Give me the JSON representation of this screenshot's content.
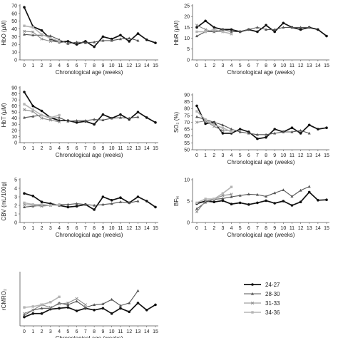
{
  "series_defs": [
    {
      "name": "24-27",
      "color": "#111111",
      "width": 1.7,
      "marker": "circle"
    },
    {
      "name": "28-30",
      "color": "#555555",
      "width": 1.1,
      "marker": "triangle"
    },
    {
      "name": "31-33",
      "color": "#8a8a8a",
      "width": 1.1,
      "marker": "cross"
    },
    {
      "name": "34-36",
      "color": "#b5b5b5",
      "width": 1.6,
      "marker": "square"
    }
  ],
  "chart_data": [
    {
      "type": "line",
      "xlabel": "Chronological age (weeks)",
      "ylabel": "HbO (µM)",
      "ylim": [
        0,
        70
      ],
      "yticks": [
        0,
        10,
        20,
        30,
        40,
        50,
        60,
        70
      ],
      "xticks": [
        0,
        1,
        2,
        3,
        4,
        5,
        6,
        7,
        8,
        9,
        10,
        11,
        12,
        13,
        14,
        15
      ],
      "grid": false,
      "series": [
        {
          "name": "24-27",
          "x": [
            0,
            1,
            2,
            3,
            4,
            5,
            6,
            7,
            8,
            9,
            10,
            11,
            12,
            13,
            14,
            15
          ],
          "y": [
            68,
            43,
            38,
            27,
            23,
            24,
            20,
            24,
            17,
            30,
            27,
            32,
            24,
            34,
            26,
            22
          ]
        },
        {
          "name": "28-30",
          "x": [
            0,
            1,
            2,
            3,
            4,
            5,
            6,
            7,
            8,
            9,
            10,
            11,
            12,
            13
          ],
          "y": [
            33,
            32,
            32,
            31,
            26,
            21,
            23,
            22,
            23,
            25,
            25,
            27,
            28,
            25
          ]
        },
        {
          "name": "31-33",
          "x": [
            0,
            1,
            2,
            3,
            4
          ],
          "y": [
            37,
            36,
            27,
            24,
            23
          ]
        },
        {
          "name": "34-36",
          "x": [
            0,
            1,
            2,
            3,
            4
          ],
          "y": [
            44,
            42,
            33,
            28,
            24
          ]
        }
      ]
    },
    {
      "type": "line",
      "xlabel": "Chronological age (weeks)",
      "ylabel": "HbR (µM)",
      "ylim": [
        0,
        25
      ],
      "yticks": [
        0,
        5,
        10,
        15,
        20,
        25
      ],
      "xticks": [
        0,
        1,
        2,
        3,
        4,
        5,
        6,
        7,
        8,
        9,
        10,
        11,
        12,
        13,
        14,
        15
      ],
      "grid": false,
      "series": [
        {
          "name": "24-27",
          "x": [
            0,
            1,
            2,
            3,
            4,
            5,
            6,
            7,
            8,
            9,
            10,
            11,
            12,
            13,
            14,
            15
          ],
          "y": [
            15,
            18,
            15,
            14,
            14,
            13,
            14,
            13,
            16,
            13,
            17,
            15,
            14,
            15,
            14,
            11
          ]
        },
        {
          "name": "28-30",
          "x": [
            0,
            1,
            2,
            3,
            4,
            5,
            6,
            7,
            8,
            9,
            10,
            11,
            12,
            13
          ],
          "y": [
            11,
            13,
            13,
            14,
            13,
            13,
            14,
            15,
            14,
            14,
            15,
            15,
            15,
            15
          ]
        },
        {
          "name": "31-33",
          "x": [
            0,
            1,
            2,
            3,
            4
          ],
          "y": [
            16,
            14,
            13,
            13,
            12
          ]
        },
        {
          "name": "34-36",
          "x": [
            0,
            1,
            2,
            3,
            4
          ],
          "y": [
            13,
            13,
            14,
            13,
            12
          ]
        }
      ]
    },
    {
      "type": "line",
      "xlabel": "Chronological age (weeks)",
      "ylabel": "HbT (µM)",
      "ylim": [
        0,
        90
      ],
      "yticks": [
        0,
        10,
        20,
        30,
        40,
        50,
        60,
        70,
        80,
        90
      ],
      "xticks": [
        0,
        1,
        2,
        3,
        4,
        5,
        6,
        7,
        8,
        9,
        10,
        11,
        12,
        13,
        14,
        15
      ],
      "grid": false,
      "series": [
        {
          "name": "24-27",
          "x": [
            0,
            1,
            2,
            3,
            4,
            5,
            6,
            7,
            8,
            9,
            10,
            11,
            12,
            13,
            14,
            15
          ],
          "y": [
            83,
            60,
            52,
            41,
            36,
            36,
            33,
            35,
            30,
            46,
            40,
            46,
            38,
            50,
            41,
            33
          ]
        },
        {
          "name": "28-30",
          "x": [
            0,
            1,
            2,
            3,
            4,
            5,
            6,
            7,
            8,
            9,
            10,
            11,
            12,
            13
          ],
          "y": [
            41,
            43,
            45,
            40,
            41,
            35,
            36,
            36,
            38,
            37,
            40,
            41,
            40,
            42
          ]
        },
        {
          "name": "31-33",
          "x": [
            0,
            1,
            2,
            3,
            4
          ],
          "y": [
            54,
            51,
            40,
            37,
            34
          ]
        },
        {
          "name": "34-36",
          "x": [
            0,
            1,
            2,
            3,
            4
          ],
          "y": [
            63,
            54,
            45,
            41,
            45
          ]
        }
      ]
    },
    {
      "type": "line",
      "xlabel": "Chronological age (weeks)",
      "ylabel": "SO₂ (%)",
      "ylim": [
        50,
        90
      ],
      "yticks": [
        50,
        55,
        60,
        65,
        70,
        75,
        80,
        85,
        90
      ],
      "xticks": [
        0,
        1,
        2,
        3,
        4,
        5,
        6,
        7,
        8,
        9,
        10,
        11,
        12,
        13,
        14,
        15
      ],
      "grid": false,
      "series": [
        {
          "name": "24-27",
          "x": [
            0,
            1,
            2,
            3,
            4,
            5,
            6,
            7,
            8,
            9,
            10,
            11,
            12,
            13,
            14,
            15
          ],
          "y": [
            82,
            69,
            70,
            62,
            62,
            65,
            63,
            58,
            59,
            65,
            63,
            66,
            62,
            68,
            65,
            66
          ]
        },
        {
          "name": "28-30",
          "x": [
            0,
            1,
            2,
            3,
            4,
            5,
            6,
            7,
            8,
            9,
            10,
            11,
            12,
            13
          ],
          "y": [
            74,
            72,
            70,
            68,
            65,
            63,
            62,
            61,
            61,
            62,
            63,
            63,
            64,
            62
          ]
        },
        {
          "name": "31-33",
          "x": [
            0,
            1,
            2,
            3,
            4
          ],
          "y": [
            70,
            71,
            67,
            64,
            64
          ]
        },
        {
          "name": "34-36",
          "x": [
            0,
            1,
            2,
            3,
            4
          ],
          "y": [
            78,
            72,
            68,
            66,
            63
          ]
        }
      ]
    },
    {
      "type": "line",
      "xlabel": "Chronological age (weeks)",
      "ylabel": "CBV (mL/100g)",
      "ylim": [
        0,
        5
      ],
      "yticks": [
        0,
        1,
        2,
        3,
        4,
        5
      ],
      "xticks": [
        0,
        1,
        2,
        3,
        4,
        5,
        6,
        7,
        8,
        9,
        10,
        11,
        12,
        13,
        14,
        15
      ],
      "grid": false,
      "series": [
        {
          "name": "24-27",
          "x": [
            0,
            1,
            2,
            3,
            4,
            5,
            6,
            7,
            8,
            9,
            10,
            11,
            12,
            13,
            14,
            15
          ],
          "y": [
            3.4,
            3.1,
            2.4,
            2.2,
            2.0,
            1.8,
            1.9,
            2.1,
            1.5,
            3.0,
            2.6,
            2.9,
            2.3,
            3.0,
            2.5,
            1.8
          ]
        },
        {
          "name": "28-30",
          "x": [
            0,
            1,
            2,
            3,
            4,
            5,
            6,
            7,
            8,
            9,
            10,
            11,
            12,
            13
          ],
          "y": [
            1.8,
            1.9,
            2.0,
            2.0,
            2.1,
            2.1,
            2.2,
            2.1,
            2.0,
            2.1,
            2.2,
            2.4,
            2.3,
            2.5
          ]
        },
        {
          "name": "31-33",
          "x": [
            0,
            1,
            2,
            3,
            4
          ],
          "y": [
            2.1,
            2.0,
            1.9,
            2.0,
            2.0
          ]
        },
        {
          "name": "34-36",
          "x": [
            0,
            1,
            2,
            3,
            4
          ],
          "y": [
            2.3,
            2.1,
            2.1,
            2.0,
            2.1
          ]
        }
      ]
    },
    {
      "type": "line",
      "xlabel": "Chronological age (weeks)",
      "ylabel": "BFᵢₓ",
      "ylim": [
        0,
        10
      ],
      "yticks": [
        0,
        5,
        10
      ],
      "xticks": [
        0,
        1,
        2,
        3,
        4,
        5,
        6,
        7,
        8,
        9,
        10,
        11,
        12,
        13,
        14,
        15
      ],
      "grid": false,
      "series": [
        {
          "name": "24-27",
          "x": [
            0,
            1,
            2,
            3,
            4,
            5,
            6,
            7,
            8,
            9,
            10,
            11,
            12,
            13,
            14,
            15
          ],
          "y": [
            4.4,
            5.0,
            4.8,
            5.1,
            4.3,
            4.6,
            4.2,
            4.6,
            5.1,
            4.5,
            5.0,
            4.0,
            4.8,
            7.1,
            5.2,
            5.3
          ]
        },
        {
          "name": "28-30",
          "x": [
            0,
            1,
            2,
            3,
            4,
            5,
            6,
            7,
            8,
            9,
            10,
            11,
            12,
            13
          ],
          "y": [
            3.2,
            4.7,
            5.4,
            5.6,
            6.0,
            6.3,
            6.6,
            6.5,
            6.1,
            6.9,
            7.6,
            6.1,
            7.5,
            8.4
          ]
        },
        {
          "name": "31-33",
          "x": [
            0,
            1,
            2,
            3,
            4
          ],
          "y": [
            2.5,
            5.0,
            5.5,
            6.3,
            6.6
          ]
        },
        {
          "name": "34-36",
          "x": [
            0,
            1,
            2,
            3,
            4
          ],
          "y": [
            4.6,
            5.5,
            5.5,
            6.8,
            8.3
          ]
        }
      ]
    },
    {
      "type": "line",
      "xlabel": "Chronological age (weeks)",
      "ylabel": "rCMRO₂",
      "ylim": [
        0,
        3
      ],
      "yticks": [],
      "xticks": [
        0,
        1,
        2,
        3,
        4,
        5,
        6,
        7,
        8,
        9,
        10,
        11,
        12,
        13,
        14,
        15
      ],
      "grid": false,
      "series": [
        {
          "name": "24-27",
          "x": [
            0,
            1,
            2,
            3,
            4,
            5,
            6,
            7,
            8,
            9,
            10,
            11,
            12,
            13,
            14,
            15
          ],
          "y": [
            0.5,
            0.7,
            0.7,
            0.95,
            1.0,
            1.05,
            0.85,
            1.0,
            0.9,
            1.0,
            0.7,
            1.0,
            0.8,
            1.3,
            0.9,
            1.2
          ]
        },
        {
          "name": "28-30",
          "x": [
            0,
            1,
            2,
            3,
            4,
            5,
            6,
            7,
            8,
            9,
            10,
            11,
            12,
            13
          ],
          "y": [
            0.6,
            0.9,
            1.0,
            1.0,
            1.3,
            1.2,
            1.4,
            1.05,
            1.2,
            1.25,
            1.5,
            1.15,
            1.3,
            2.0
          ]
        },
        {
          "name": "31-33",
          "x": [
            0,
            1,
            2,
            3,
            4,
            5,
            6,
            7
          ],
          "y": [
            0.7,
            0.9,
            1.2,
            1.05,
            1.25,
            1.3,
            1.55,
            1.2
          ]
        },
        {
          "name": "34-36",
          "x": [
            0,
            1,
            2,
            3,
            4
          ],
          "y": [
            1.05,
            1.1,
            1.2,
            1.35,
            1.65
          ]
        }
      ]
    }
  ]
}
